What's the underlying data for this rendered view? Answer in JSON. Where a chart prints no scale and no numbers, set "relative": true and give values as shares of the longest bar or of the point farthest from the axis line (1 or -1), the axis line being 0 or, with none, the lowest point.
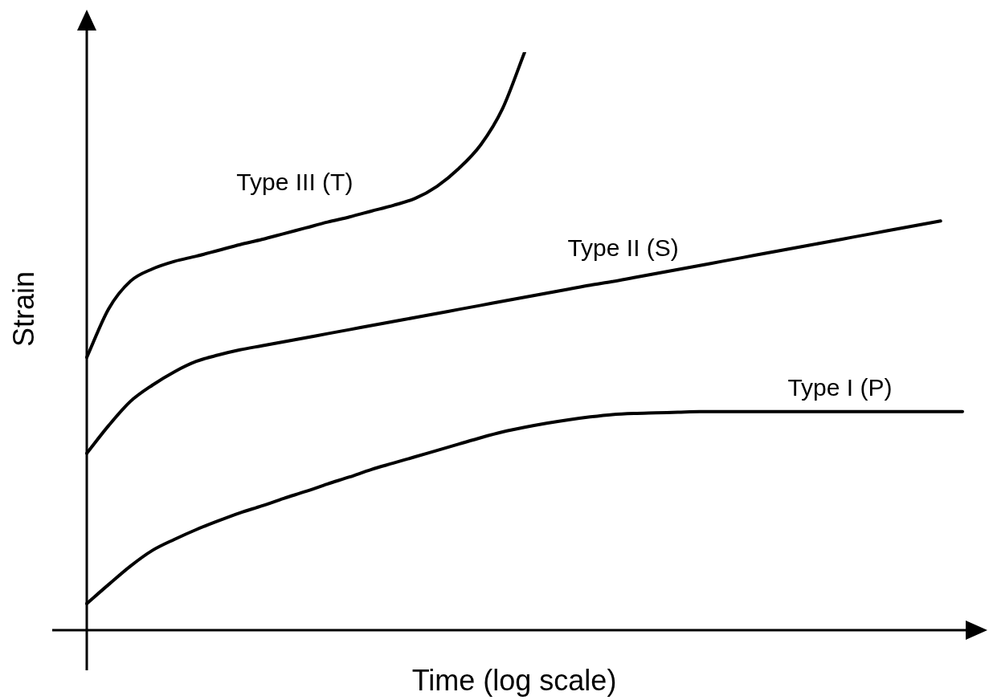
{
  "chart_data": {
    "type": "line",
    "relative": true,
    "xlabel": "Time (log scale)",
    "ylabel": "Strain",
    "marker": "none",
    "line_style": "solid",
    "legend": false,
    "categories": [
      null,
      null,
      null,
      null,
      null,
      null,
      null,
      null,
      null,
      null,
      null,
      null,
      null,
      null,
      null,
      null,
      null,
      null,
      null,
      null,
      null,
      null,
      null,
      null,
      null,
      null,
      null,
      null,
      null,
      null,
      null,
      null,
      null,
      null,
      null,
      null,
      null,
      null,
      null,
      null,
      null
    ],
    "series": [
      {
        "name": "Type III (T)",
        "color": "#000000",
        "values": [
          0.472,
          0.556,
          0.604,
          0.625,
          0.638,
          0.647,
          0.657,
          0.667,
          0.676,
          0.686,
          0.696,
          0.706,
          0.715,
          0.725,
          0.735,
          0.747,
          0.768,
          0.799,
          0.84,
          0.903,
          1,
          null,
          null,
          null,
          null,
          null,
          null,
          null,
          null,
          null,
          null,
          null,
          null,
          null,
          null,
          null,
          null,
          null,
          null,
          null,
          null
        ]
      },
      {
        "name": "Type II (S)",
        "color": "#000000",
        "values": [
          0.306,
          0.354,
          0.396,
          0.424,
          0.447,
          0.465,
          0.476,
          0.485,
          0.492,
          0.499,
          0.506,
          0.513,
          0.52,
          0.527,
          0.534,
          0.541,
          0.548,
          0.555,
          0.562,
          0.569,
          0.576,
          0.583,
          0.59,
          0.597,
          0.603,
          0.61,
          0.617,
          0.624,
          0.631,
          0.638,
          0.645,
          0.652,
          0.659,
          0.666,
          0.673,
          0.68,
          0.687,
          0.694,
          0.701,
          0.708,
          null
        ]
      },
      {
        "name": "Type I (P)",
        "color": "#000000",
        "values": [
          0.046,
          0.079,
          0.111,
          0.138,
          0.157,
          0.174,
          0.189,
          0.203,
          0.215,
          0.228,
          0.24,
          0.253,
          0.265,
          0.278,
          0.289,
          0.3,
          0.311,
          0.322,
          0.333,
          0.343,
          0.351,
          0.358,
          0.364,
          0.369,
          0.373,
          0.375,
          0.376,
          0.377,
          0.378,
          0.378,
          0.378,
          0.378,
          0.378,
          0.378,
          0.378,
          0.378,
          0.378,
          0.378,
          0.378,
          0.378,
          0.378
        ]
      }
    ]
  }
}
